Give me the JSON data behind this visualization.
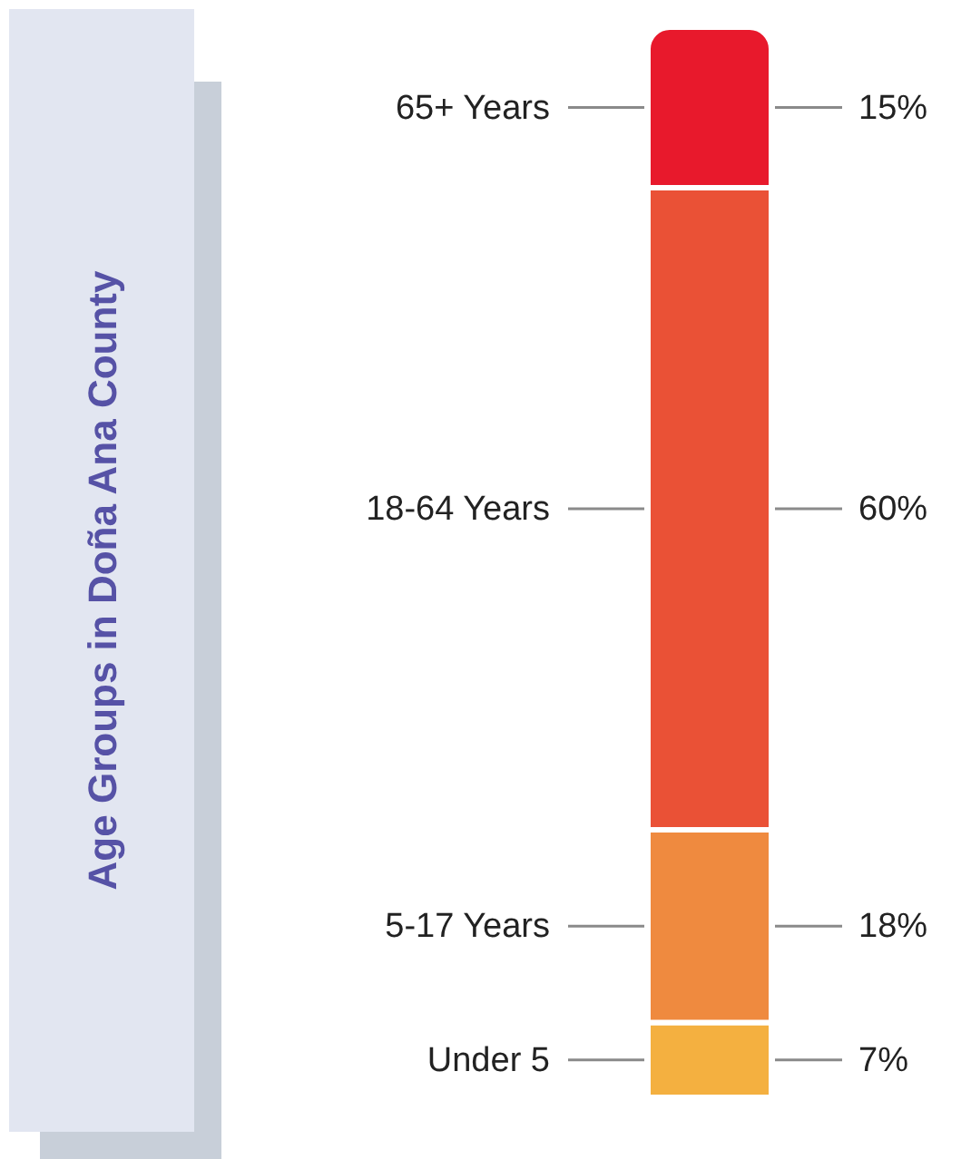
{
  "chart_data": {
    "type": "bar",
    "title": "Age Groups in Doña Ana County",
    "stacked": true,
    "categories": [
      null
    ],
    "series": [
      {
        "name": "Under 5",
        "color": "#f4b040",
        "values": [
          7
        ],
        "value_labels": [
          "7%"
        ]
      },
      {
        "name": "5-17 Years",
        "color": "#ef8a3f",
        "values": [
          18
        ],
        "value_labels": [
          "18%"
        ]
      },
      {
        "name": "18-64 Years",
        "color": "#ea5136",
        "values": [
          60
        ],
        "value_labels": [
          "60%"
        ]
      },
      {
        "name": "65+ Years",
        "color": "#e8192c",
        "values": [
          15
        ],
        "value_labels": [
          "15%"
        ]
      }
    ]
  }
}
